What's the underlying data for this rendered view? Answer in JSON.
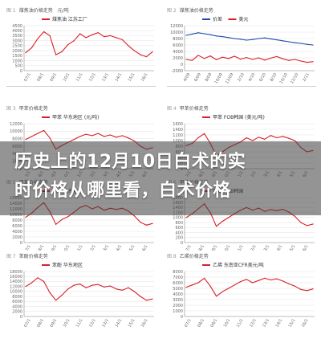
{
  "banner": {
    "line1": "历史上的12月10日白术的实",
    "line2": "时价格从哪里看，白术价格"
  },
  "colors": {
    "red": "#d91f26",
    "blue": "#1f4aa8",
    "grid": "#e2e2e2",
    "axis": "#888888"
  },
  "chart_data": [
    {
      "type": "line",
      "caption_num": "图 1",
      "caption": "煤焦油价格走势",
      "unit": "元/吨",
      "legend": [
        "煤焦油 江苏工厂"
      ],
      "y_ticks": [
        "4500",
        "4000",
        "3500",
        "3000",
        "2500",
        "2000",
        "1500",
        "1000",
        "500",
        "0"
      ],
      "ylim": [
        0,
        4500
      ],
      "x_ticks": [
        "07/1",
        "08/1",
        "09/1",
        "10/1",
        "11/1",
        "12/1",
        "13/1",
        "14/1",
        "15/1",
        "16/1"
      ],
      "series": [
        {
          "color": "red",
          "values": [
            1800,
            2300,
            3200,
            3900,
            3500,
            1600,
            1900,
            2600,
            3000,
            3700,
            3300,
            3600,
            3800,
            3400,
            3500,
            3300,
            3100,
            2500,
            2000,
            1600,
            1400,
            1900
          ]
        }
      ]
    },
    {
      "type": "line",
      "caption_num": "图 2",
      "caption": "煤焦油价格走势",
      "unit": "",
      "legend": [
        "价差",
        "美元"
      ],
      "y_ticks": [
        "12000",
        "10000",
        "8000",
        "6000",
        "4000",
        "2000",
        "0",
        "-2000"
      ],
      "ylim": [
        -2000,
        12000
      ],
      "x_ticks": [
        "4/09",
        "6/09",
        "8/09",
        "10/09",
        "12/09",
        "2/10",
        "4/10",
        "6/10",
        "8/10",
        "10/10",
        "12/10",
        "2/11"
      ],
      "series": [
        {
          "color": "blue",
          "values": [
            9000,
            9400,
            9800,
            9500,
            9200,
            8800,
            8600,
            8300,
            8000,
            7800,
            7500,
            7700,
            8000,
            8200,
            7900,
            7600,
            7300,
            7000,
            6700,
            6500,
            6200,
            6000
          ]
        },
        {
          "color": "red",
          "values": [
            1500,
            1200,
            2800,
            1800,
            2600,
            1400,
            2200,
            1800,
            2500,
            1600,
            2100,
            1500,
            2000,
            1300,
            1900,
            2400,
            1700,
            1200,
            1500,
            1000,
            600,
            800
          ]
        }
      ]
    },
    {
      "type": "line",
      "caption_num": "图 3",
      "caption": "甲苯价格走势",
      "unit": "",
      "legend": [
        "甲苯 华东地区 (元/吨)"
      ],
      "y_ticks": [
        "12000",
        "10000",
        "8000",
        "6000",
        "4000",
        "2000",
        "0"
      ],
      "ylim": [
        0,
        12000
      ],
      "x_ticks": [
        "07/1",
        "08/1",
        "09/1",
        "10/1",
        "11/1",
        "12/1",
        "13/1",
        "14/1",
        "15/1",
        "16/1"
      ],
      "series": [
        {
          "color": "red",
          "values": [
            7800,
            8600,
            9400,
            10200,
            8200,
            5200,
            6200,
            7000,
            7800,
            8600,
            9200,
            8800,
            9400,
            8600,
            9000,
            8400,
            8800,
            8200,
            7400,
            6000,
            5200,
            5600
          ]
        }
      ]
    },
    {
      "type": "line",
      "caption_num": "图 4",
      "caption": "甲苯价格走势",
      "unit": "",
      "legend": [
        "甲苯 FOB韩国 (美元/吨)"
      ],
      "y_ticks": [
        "1600",
        "1400",
        "1200",
        "1000",
        "800",
        "600",
        "400",
        "200",
        "0"
      ],
      "ylim": [
        0,
        1600
      ],
      "x_ticks": [
        "07/1",
        "08/1",
        "09/1",
        "10/1",
        "11/1",
        "12/1",
        "13/1",
        "14/1",
        "15/1",
        "16/1"
      ],
      "series": [
        {
          "color": "red",
          "values": [
            820,
            900,
            1100,
            1250,
            900,
            450,
            600,
            750,
            850,
            950,
            1100,
            1000,
            1120,
            1050,
            1180,
            1100,
            1150,
            1080,
            1000,
            750,
            600,
            650
          ]
        }
      ]
    },
    {
      "type": "line",
      "caption_num": "图 5",
      "caption": "甲苯价格走势",
      "unit": "",
      "legend": [
        "甲苯 华东地区"
      ],
      "y_ticks": [
        "16000",
        "14000",
        "12000",
        "10000",
        "8000",
        "6000",
        "4000",
        "2000",
        "0"
      ],
      "ylim": [
        0,
        16000
      ],
      "x_ticks": [
        "07/1",
        "08/1",
        "09/1",
        "10/1",
        "11/1",
        "12/1",
        "13/1",
        "14/1",
        "15/1",
        "16/1"
      ],
      "series": [
        {
          "color": "red",
          "values": [
            9000,
            10500,
            12500,
            14200,
            11000,
            6500,
            8200,
            9200,
            10800,
            12500,
            13200,
            12000,
            12800,
            11500,
            12200,
            11800,
            12200,
            11200,
            9500,
            7200,
            6200,
            6800
          ]
        }
      ]
    },
    {
      "type": "line",
      "caption_num": "图 6",
      "caption": "甲苯价格走势",
      "unit": "",
      "legend": [
        "甲苯 FOB韩国"
      ],
      "y_ticks": [
        "1800",
        "1600",
        "1400",
        "1200",
        "1000",
        "800",
        "600",
        "400",
        "200",
        "0"
      ],
      "ylim": [
        0,
        1800
      ],
      "x_ticks": [
        "07/1",
        "08/1",
        "09/1",
        "10/1",
        "11/1",
        "12/1",
        "13/1",
        "14/1",
        "15/1",
        "16/1"
      ],
      "series": [
        {
          "color": "red",
          "values": [
            1000,
            1150,
            1350,
            1550,
            1200,
            650,
            850,
            1000,
            1150,
            1300,
            1400,
            1300,
            1380,
            1250,
            1320,
            1280,
            1330,
            1220,
            1050,
            800,
            680,
            740
          ]
        }
      ]
    },
    {
      "type": "line",
      "caption_num": "图 7",
      "caption": "苯酚价格走势",
      "unit": "",
      "legend": [
        "苯酚 华东地区"
      ],
      "y_ticks": [
        "18000",
        "16000",
        "14000",
        "12000",
        "10000",
        "8000",
        "6000",
        "4000",
        "2000",
        "0"
      ],
      "ylim": [
        0,
        18000
      ],
      "x_ticks": [
        "07/1",
        "08/1",
        "09/1",
        "10/1",
        "11/1",
        "12/1",
        "13/1",
        "14/1",
        "15/1",
        "16/1"
      ],
      "series": [
        {
          "color": "red",
          "values": [
            12000,
            13500,
            15500,
            14000,
            9500,
            6500,
            8500,
            11000,
            12500,
            13000,
            11500,
            12500,
            12800,
            11800,
            12200,
            11000,
            10500,
            11500,
            10000,
            8000,
            6500,
            7000
          ]
        }
      ]
    },
    {
      "type": "line",
      "caption_num": "图 8",
      "caption": "乙烯价格走势",
      "unit": "",
      "legend": [
        "乙烯 东南亚CFR美元/吨"
      ],
      "y_ticks": [
        "8000",
        "7000",
        "6000",
        "5000",
        "4000",
        "3000",
        "2000",
        "1000",
        "0"
      ],
      "ylim": [
        0,
        8000
      ],
      "x_ticks": [
        "07/1",
        "08/1",
        "09/1",
        "10/1",
        "11/1",
        "12/1",
        "13/1",
        "14/1",
        "15/1",
        "16/1"
      ],
      "series": [
        {
          "color": "red",
          "values": [
            5200,
            5600,
            6000,
            6800,
            5400,
            3600,
            4400,
            5000,
            5600,
            6200,
            6600,
            6000,
            6400,
            6800,
            6500,
            6700,
            6300,
            5800,
            5400,
            4800,
            4600,
            4900
          ]
        }
      ]
    }
  ]
}
